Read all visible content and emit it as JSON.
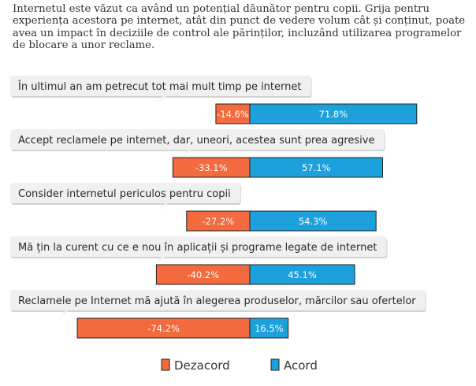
{
  "intro_text": "Internetul este văzut ca având un potențial dăunător pentru copii. Grija pentru experiența acestora pe internet, atât din punct de vedere volum cât și conținut, poate avea un impact în deciziile de control ale părinților, incluzând utilizarea programelor de blocare a unor reclame.",
  "chart_data": {
    "type": "bar",
    "orientation": "horizontal-diverging",
    "categories": [
      "În ultimul an am petrecut tot mai mult timp pe internet",
      "Accept reclamele pe internet, dar, uneori, acestea sunt prea agresive",
      "Consider internetul periculos pentru copii",
      "Mă țin la curent cu ce e nou în aplicații și programe legate de internet",
      "Reclamele pe Internet mă ajută în alegerea produselor, mărcilor sau ofertelor"
    ],
    "series": [
      {
        "name": "Dezacord",
        "color": "#f26a3d",
        "values": [
          -14.6,
          -33.1,
          -27.2,
          -40.2,
          -74.2
        ],
        "labels": [
          "-14.6%",
          "-33.1%",
          "-27.2%",
          "-40.2%",
          "-74.2%"
        ]
      },
      {
        "name": "Acord",
        "color": "#1da1dc",
        "values": [
          71.8,
          57.1,
          54.3,
          45.1,
          16.5
        ],
        "labels": [
          "71.8%",
          "57.1%",
          "54.3%",
          "45.1%",
          "16.5%"
        ]
      }
    ],
    "legend_position": "bottom-center",
    "grid": false
  }
}
